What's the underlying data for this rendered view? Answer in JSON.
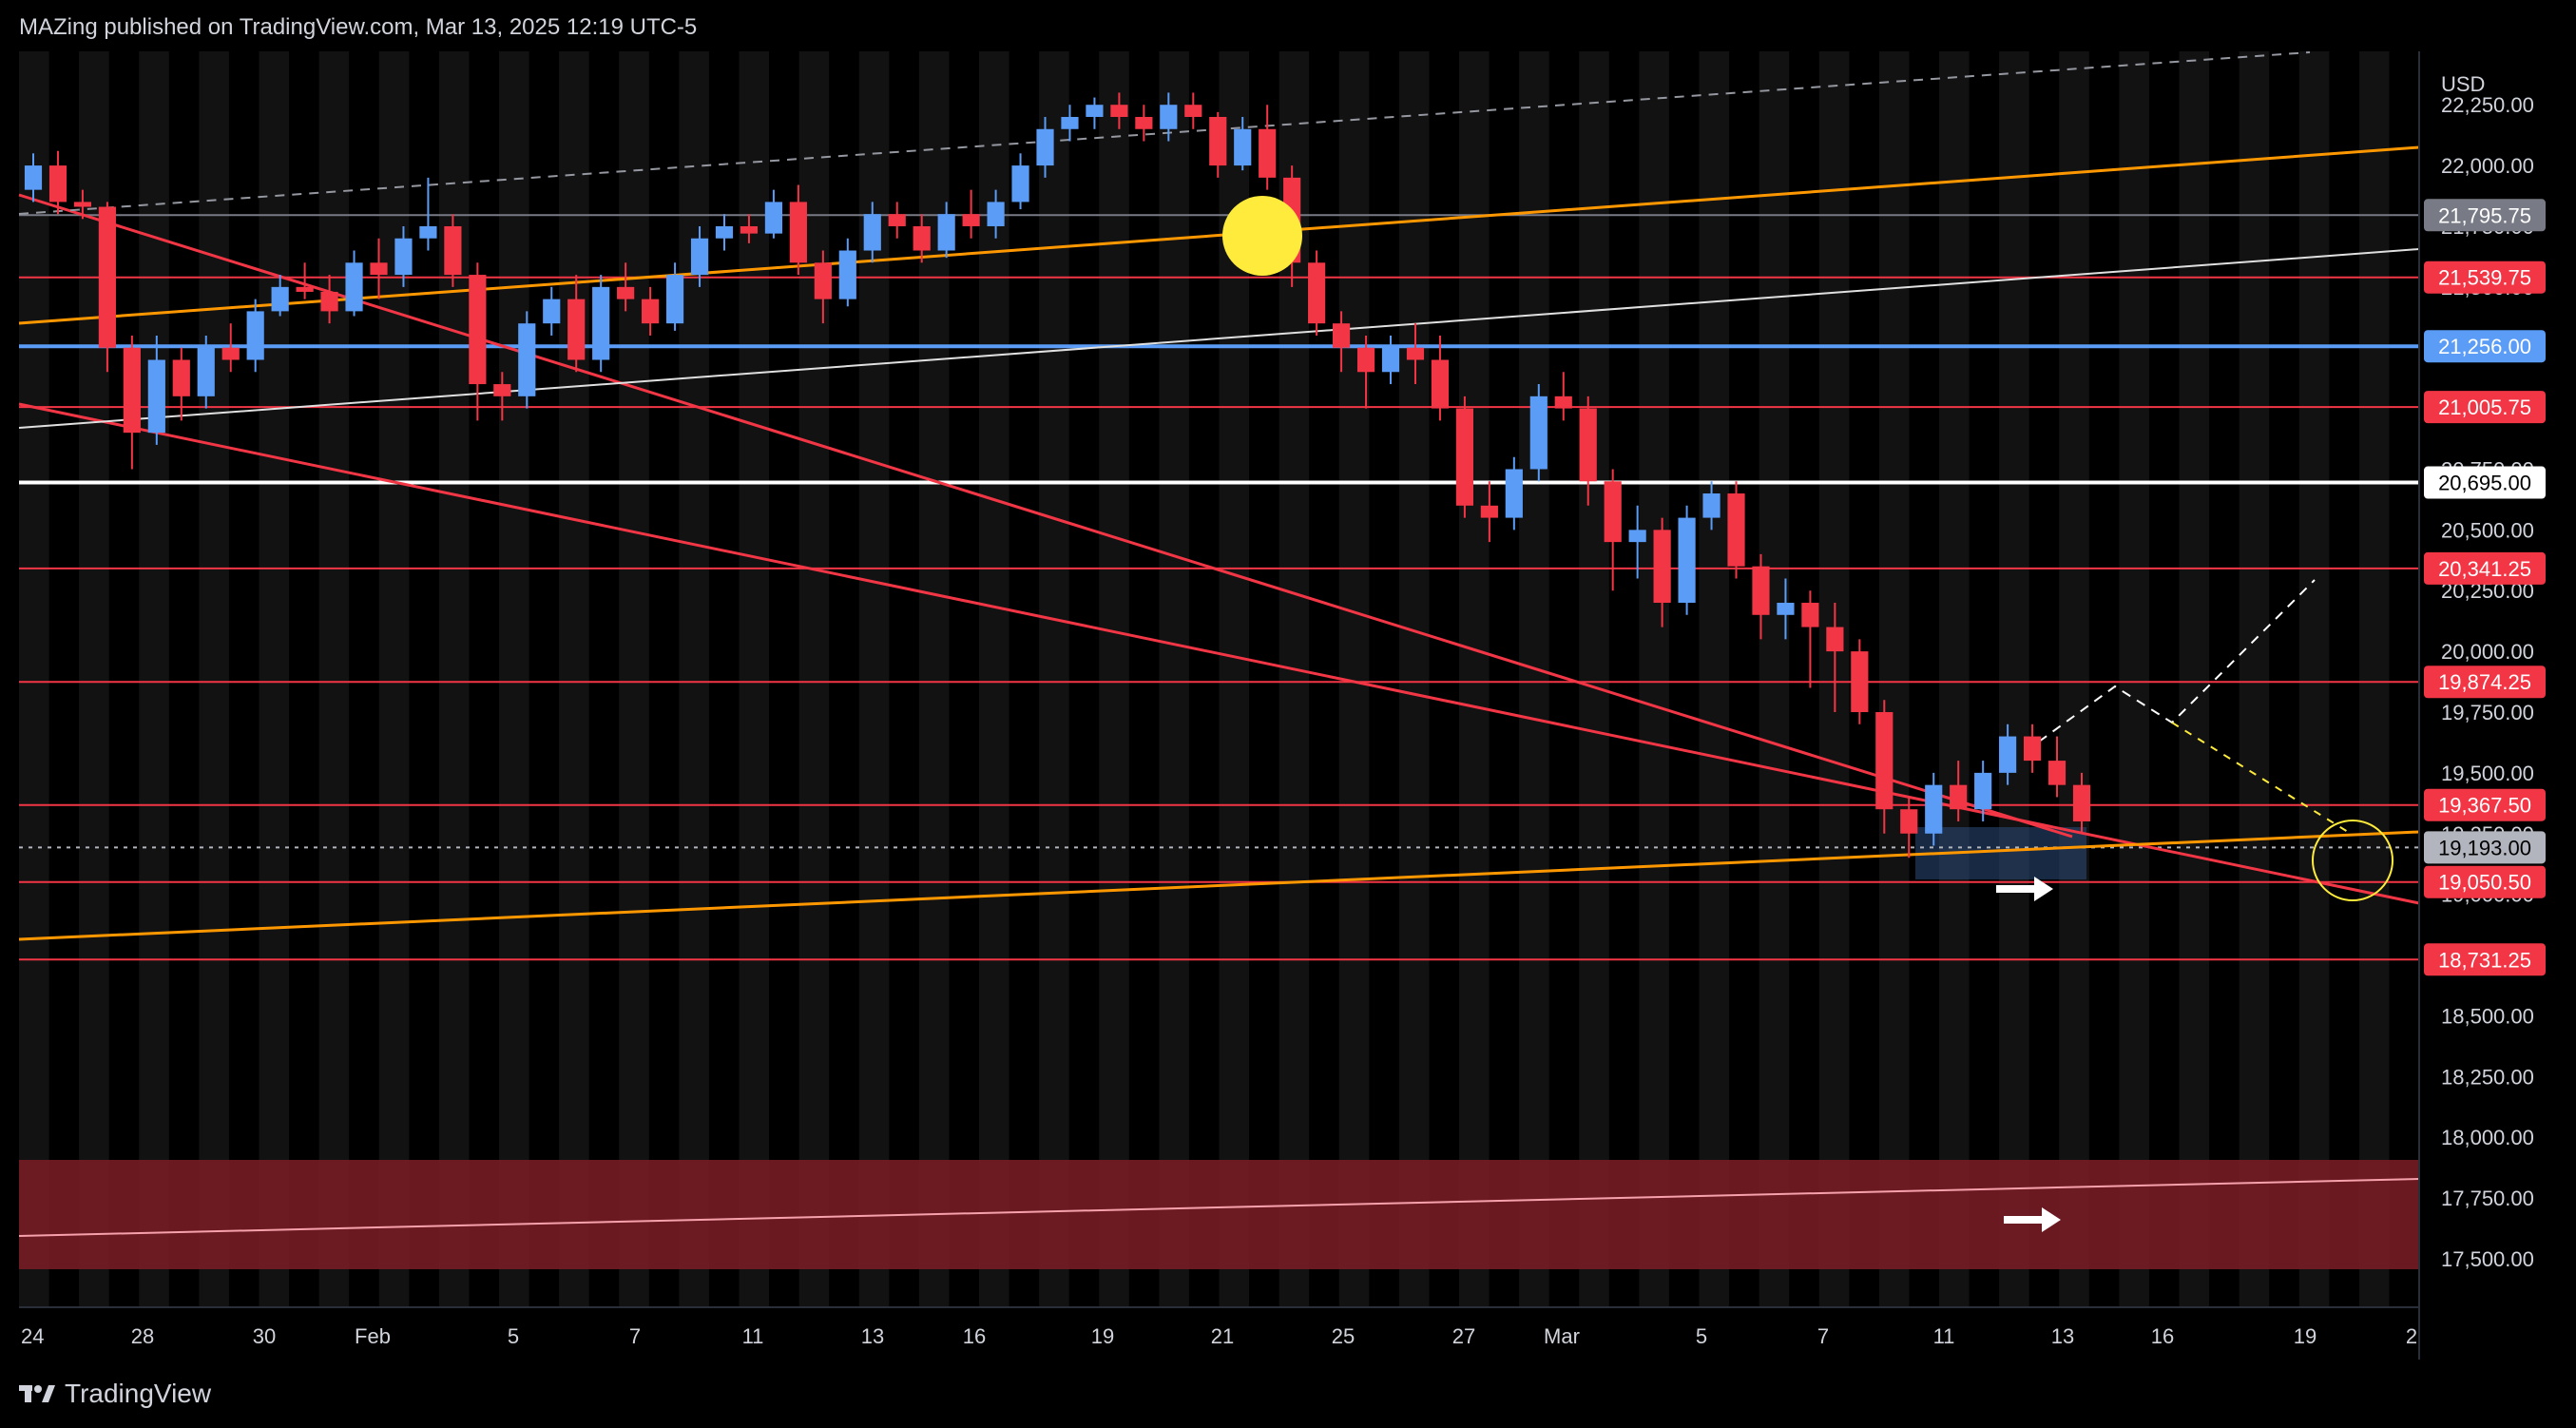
{
  "header": {
    "publisher_text": "MAZing published on TradingView.com, Mar 13, 2025 12:19 UTC-5"
  },
  "brand": {
    "label": "TradingView",
    "logo_icon": "tradingview-logo-icon"
  },
  "chart_data": {
    "type": "candlestick",
    "currency": "USD",
    "y_range": [
      17300,
      22470
    ],
    "y_ticks": [
      "22,250.00",
      "22,000.00",
      "21,750.00",
      "21,500.00",
      "21,250.00",
      "21,000.00",
      "20,750.00",
      "20,500.00",
      "20,250.00",
      "20,000.00",
      "19,750.00",
      "19,500.00",
      "19,250.00",
      "19,000.00",
      "18,750.00",
      "18,500.00",
      "18,250.00",
      "18,000.00",
      "17,750.00",
      "17,500.00"
    ],
    "x_ticks": [
      "24",
      "28",
      "30",
      "Feb",
      "5",
      "7",
      "11",
      "13",
      "16",
      "19",
      "21",
      "25",
      "27",
      "Mar",
      "5",
      "7",
      "11",
      "13",
      "16",
      "19",
      "2"
    ],
    "price_levels": [
      {
        "label": "21,795.75",
        "value": 21795.75,
        "color": "#787b86"
      },
      {
        "label": "21,539.75",
        "value": 21539.75,
        "color": "#f23645"
      },
      {
        "label": "21,256.00",
        "value": 21256.0,
        "color": "#5b9cf6"
      },
      {
        "label": "21,005.75",
        "value": 21005.75,
        "color": "#f23645"
      },
      {
        "label": "20,695.00",
        "value": 20695.0,
        "color": "#ffffff"
      },
      {
        "label": "20,341.25",
        "value": 20341.25,
        "color": "#f23645"
      },
      {
        "label": "19,874.25",
        "value": 19874.25,
        "color": "#f23645"
      },
      {
        "label": "19,367.50",
        "value": 19367.5,
        "color": "#f23645"
      },
      {
        "label": "19,193.00",
        "value": 19193.0,
        "color": "#b2b5be"
      },
      {
        "label": "19,050.50",
        "value": 19050.5,
        "color": "#f23645"
      },
      {
        "label": "18,731.25",
        "value": 18731.25,
        "color": "#f23645"
      }
    ],
    "candles": [
      [
        21900,
        22050,
        21850,
        22000
      ],
      [
        22000,
        22060,
        21800,
        21850
      ],
      [
        21850,
        21900,
        21780,
        21830
      ],
      [
        21830,
        21850,
        21150,
        21250
      ],
      [
        21250,
        21300,
        20750,
        20900
      ],
      [
        20900,
        21300,
        20850,
        21200
      ],
      [
        21200,
        21250,
        20950,
        21050
      ],
      [
        21050,
        21300,
        21000,
        21250
      ],
      [
        21250,
        21350,
        21150,
        21200
      ],
      [
        21200,
        21450,
        21150,
        21400
      ],
      [
        21400,
        21550,
        21380,
        21500
      ],
      [
        21500,
        21600,
        21450,
        21480
      ],
      [
        21480,
        21550,
        21350,
        21400
      ],
      [
        21400,
        21650,
        21380,
        21600
      ],
      [
        21600,
        21700,
        21450,
        21550
      ],
      [
        21550,
        21750,
        21500,
        21700
      ],
      [
        21700,
        21950,
        21650,
        21750
      ],
      [
        21750,
        21800,
        21500,
        21550
      ],
      [
        21550,
        21600,
        20950,
        21100
      ],
      [
        21100,
        21150,
        20950,
        21050
      ],
      [
        21050,
        21400,
        21000,
        21350
      ],
      [
        21350,
        21500,
        21300,
        21450
      ],
      [
        21450,
        21550,
        21150,
        21200
      ],
      [
        21200,
        21550,
        21150,
        21500
      ],
      [
        21500,
        21600,
        21400,
        21450
      ],
      [
        21450,
        21500,
        21300,
        21350
      ],
      [
        21350,
        21600,
        21320,
        21550
      ],
      [
        21550,
        21750,
        21500,
        21700
      ],
      [
        21700,
        21800,
        21650,
        21750
      ],
      [
        21750,
        21800,
        21680,
        21720
      ],
      [
        21720,
        21900,
        21700,
        21850
      ],
      [
        21850,
        21920,
        21550,
        21600
      ],
      [
        21600,
        21650,
        21350,
        21450
      ],
      [
        21450,
        21700,
        21420,
        21650
      ],
      [
        21650,
        21850,
        21600,
        21800
      ],
      [
        21800,
        21850,
        21700,
        21750
      ],
      [
        21750,
        21800,
        21600,
        21650
      ],
      [
        21650,
        21850,
        21620,
        21800
      ],
      [
        21800,
        21900,
        21700,
        21750
      ],
      [
        21750,
        21900,
        21700,
        21850
      ],
      [
        21850,
        22050,
        21820,
        22000
      ],
      [
        22000,
        22200,
        21950,
        22150
      ],
      [
        22150,
        22250,
        22100,
        22200
      ],
      [
        22200,
        22280,
        22150,
        22250
      ],
      [
        22250,
        22300,
        22150,
        22200
      ],
      [
        22200,
        22250,
        22100,
        22150
      ],
      [
        22150,
        22300,
        22100,
        22250
      ],
      [
        22250,
        22300,
        22150,
        22200
      ],
      [
        22200,
        22220,
        21950,
        22000
      ],
      [
        22000,
        22200,
        21980,
        22150
      ],
      [
        22150,
        22250,
        21900,
        21950
      ],
      [
        21950,
        22000,
        21500,
        21600
      ],
      [
        21600,
        21650,
        21300,
        21350
      ],
      [
        21350,
        21400,
        21150,
        21250
      ],
      [
        21250,
        21300,
        21000,
        21150
      ],
      [
        21150,
        21300,
        21100,
        21250
      ],
      [
        21250,
        21350,
        21100,
        21200
      ],
      [
        21200,
        21300,
        20950,
        21000
      ],
      [
        21000,
        21050,
        20550,
        20600
      ],
      [
        20600,
        20700,
        20450,
        20550
      ],
      [
        20550,
        20800,
        20500,
        20750
      ],
      [
        20750,
        21100,
        20700,
        21050
      ],
      [
        21050,
        21150,
        20950,
        21000
      ],
      [
        21000,
        21050,
        20600,
        20700
      ],
      [
        20700,
        20750,
        20250,
        20450
      ],
      [
        20450,
        20600,
        20300,
        20500
      ],
      [
        20500,
        20550,
        20100,
        20200
      ],
      [
        20200,
        20600,
        20150,
        20550
      ],
      [
        20550,
        20700,
        20500,
        20650
      ],
      [
        20650,
        20700,
        20300,
        20350
      ],
      [
        20350,
        20400,
        20050,
        20150
      ],
      [
        20150,
        20300,
        20050,
        20200
      ],
      [
        20200,
        20250,
        19850,
        20100
      ],
      [
        20100,
        20200,
        19750,
        20000
      ],
      [
        20000,
        20050,
        19700,
        19750
      ],
      [
        19750,
        19800,
        19250,
        19350
      ],
      [
        19350,
        19400,
        19150,
        19250
      ],
      [
        19250,
        19500,
        19200,
        19450
      ],
      [
        19450,
        19550,
        19300,
        19350
      ],
      [
        19350,
        19550,
        19300,
        19500
      ],
      [
        19500,
        19700,
        19450,
        19650
      ],
      [
        19650,
        19700,
        19500,
        19550
      ],
      [
        19550,
        19650,
        19400,
        19450
      ],
      [
        19450,
        19500,
        19250,
        19300
      ]
    ]
  },
  "colors": {
    "up": "#5b9cf6",
    "down": "#f23645",
    "background": "#000000",
    "grid_stripe": "#121212",
    "support_zone": "#7b1d24",
    "orange_line": "#ff9800",
    "highlight_circle": "#ffeb3b"
  }
}
